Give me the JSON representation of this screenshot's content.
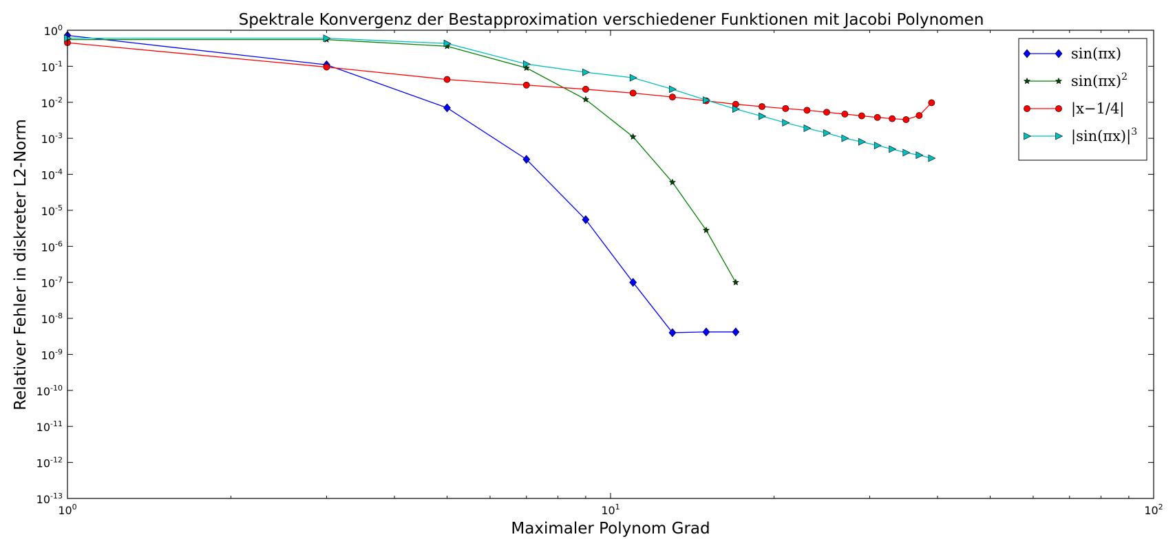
{
  "chart_data": {
    "type": "line",
    "title": "Spektrale Konvergenz der Bestapproximation verschiedener Funktionen mit Jacobi Polynomen",
    "xlabel": "Maximaler Polynom Grad",
    "ylabel": "Relativer Fehler in diskreter L2-Norm",
    "xscale": "log",
    "yscale": "log",
    "xlim": [
      1,
      100
    ],
    "ylim": [
      1e-13,
      1
    ],
    "x_ticks": [
      {
        "value": 1,
        "base": "10",
        "exp": "0"
      },
      {
        "value": 10,
        "base": "10",
        "exp": "1"
      },
      {
        "value": 100,
        "base": "10",
        "exp": "2"
      }
    ],
    "y_ticks": [
      {
        "value": 0,
        "base": "10",
        "exp": "0"
      },
      {
        "value": -1,
        "base": "10",
        "exp": "-1"
      },
      {
        "value": -2,
        "base": "10",
        "exp": "-2"
      },
      {
        "value": -3,
        "base": "10",
        "exp": "-3"
      },
      {
        "value": -4,
        "base": "10",
        "exp": "-4"
      },
      {
        "value": -5,
        "base": "10",
        "exp": "-5"
      },
      {
        "value": -6,
        "base": "10",
        "exp": "-6"
      },
      {
        "value": -7,
        "base": "10",
        "exp": "-7"
      },
      {
        "value": -8,
        "base": "10",
        "exp": "-8"
      },
      {
        "value": -9,
        "base": "10",
        "exp": "-9"
      },
      {
        "value": -10,
        "base": "10",
        "exp": "-10"
      },
      {
        "value": -11,
        "base": "10",
        "exp": "-11"
      },
      {
        "value": -12,
        "base": "10",
        "exp": "-12"
      },
      {
        "value": -13,
        "base": "10",
        "exp": "-13"
      }
    ],
    "grid": false,
    "legend_position": "top-right",
    "series": [
      {
        "label": "sin(πx)",
        "legend": {
          "main": "sin(πx)",
          "sup": ""
        },
        "color": "#0000ff",
        "marker": "diamond",
        "x": [
          1,
          3,
          5,
          7,
          9,
          11,
          13,
          15,
          17
        ],
        "y": [
          0.72,
          0.11,
          0.007,
          0.00026,
          5.5e-06,
          1e-07,
          4e-09,
          4.2e-09,
          4.2e-09
        ]
      },
      {
        "label": "sin(πx)^2",
        "legend": {
          "main": "sin(πx)",
          "sup": "2"
        },
        "color": "#008000",
        "marker": "star",
        "x": [
          1,
          3,
          5,
          7,
          9,
          11,
          13,
          15,
          17
        ],
        "y": [
          0.55,
          0.55,
          0.36,
          0.09,
          0.012,
          0.0011,
          6e-05,
          2.8e-06,
          1e-07
        ]
      },
      {
        "label": "|x−1/4|",
        "legend": {
          "main": "|x−1/4|",
          "sup": ""
        },
        "color": "#ff0000",
        "marker": "circle",
        "x": [
          1,
          3,
          5,
          7,
          9,
          11,
          13,
          15,
          17,
          19,
          21,
          23,
          25,
          27,
          29,
          31,
          33,
          35,
          37,
          39
        ],
        "y": [
          0.45,
          0.095,
          0.043,
          0.03,
          0.023,
          0.018,
          0.014,
          0.011,
          0.0088,
          0.0076,
          0.0067,
          0.006,
          0.0053,
          0.0047,
          0.0042,
          0.0038,
          0.0035,
          0.0033,
          0.0043,
          0.0097
        ]
      },
      {
        "label": "|sin(πx)|^3",
        "legend": {
          "main": "|sin(πx)|",
          "sup": "3"
        },
        "color": "#00bfbf",
        "marker": "triangle-right",
        "x": [
          1,
          3,
          5,
          7,
          9,
          11,
          13,
          15,
          17,
          19,
          21,
          23,
          25,
          27,
          29,
          31,
          33,
          35,
          37,
          39
        ],
        "y": [
          0.6,
          0.6,
          0.43,
          0.115,
          0.068,
          0.048,
          0.023,
          0.0115,
          0.0065,
          0.0041,
          0.0027,
          0.0019,
          0.0014,
          0.001,
          0.0008,
          0.00063,
          0.0005,
          0.0004,
          0.00034,
          0.00028
        ]
      }
    ]
  }
}
